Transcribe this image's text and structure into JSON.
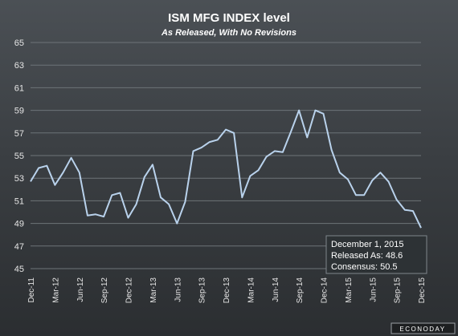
{
  "chart_data": {
    "type": "line",
    "title": "ISM MFG INDEX level",
    "subtitle": "As Released, With No Revisions",
    "ylim": [
      45,
      65
    ],
    "yticks": [
      "45",
      "47",
      "49",
      "51",
      "53",
      "55",
      "57",
      "59",
      "61",
      "63",
      "65"
    ],
    "grid": true,
    "x": [
      "Dec-11",
      "Jan-12",
      "Feb-12",
      "Mar-12",
      "Apr-12",
      "May-12",
      "Jun-12",
      "Jul-12",
      "Aug-12",
      "Sep-12",
      "Oct-12",
      "Nov-12",
      "Dec-12",
      "Jan-13",
      "Feb-13",
      "Mar-13",
      "Apr-13",
      "May-13",
      "Jun-13",
      "Jul-13",
      "Aug-13",
      "Sep-13",
      "Oct-13",
      "Nov-13",
      "Dec-13",
      "Jan-14",
      "Feb-14",
      "Mar-14",
      "Apr-14",
      "May-14",
      "Jun-14",
      "Jul-14",
      "Aug-14",
      "Sep-14",
      "Oct-14",
      "Nov-14",
      "Dec-14",
      "Jan-15",
      "Feb-15",
      "Mar-15",
      "Apr-15",
      "May-15",
      "Jun-15",
      "Jul-15",
      "Aug-15",
      "Sep-15",
      "Oct-15",
      "Nov-15",
      "Dec-15"
    ],
    "xtick_labels": [
      "Dec-11",
      "Mar-12",
      "Jun-12",
      "Sep-12",
      "Dec-12",
      "Mar-13",
      "Jun-13",
      "Sep-13",
      "Dec-13",
      "Mar-14",
      "Jun-14",
      "Sep-14",
      "Dec-14",
      "Mar-15",
      "Jun-15",
      "Sep-15",
      "Dec-15"
    ],
    "series": [
      {
        "name": "",
        "color": "#b9d2ec",
        "values": [
          52.7,
          53.9,
          54.1,
          52.4,
          53.5,
          54.8,
          53.5,
          49.7,
          49.8,
          49.6,
          51.5,
          51.7,
          49.5,
          50.7,
          53.1,
          54.2,
          51.3,
          50.7,
          49.0,
          50.9,
          55.4,
          55.7,
          56.2,
          56.4,
          57.3,
          57.0,
          51.3,
          53.2,
          53.7,
          54.9,
          55.4,
          55.3,
          57.1,
          59.0,
          56.6,
          59.0,
          58.7,
          55.5,
          53.5,
          52.9,
          51.5,
          51.5,
          52.8,
          53.5,
          52.7,
          51.1,
          50.2,
          50.1,
          48.6
        ]
      }
    ],
    "tooltip": {
      "date": "December 1, 2015",
      "released": "Released As: 48.6",
      "consensus": "Consensus: 50.5"
    },
    "logo": "ECONODAY"
  }
}
